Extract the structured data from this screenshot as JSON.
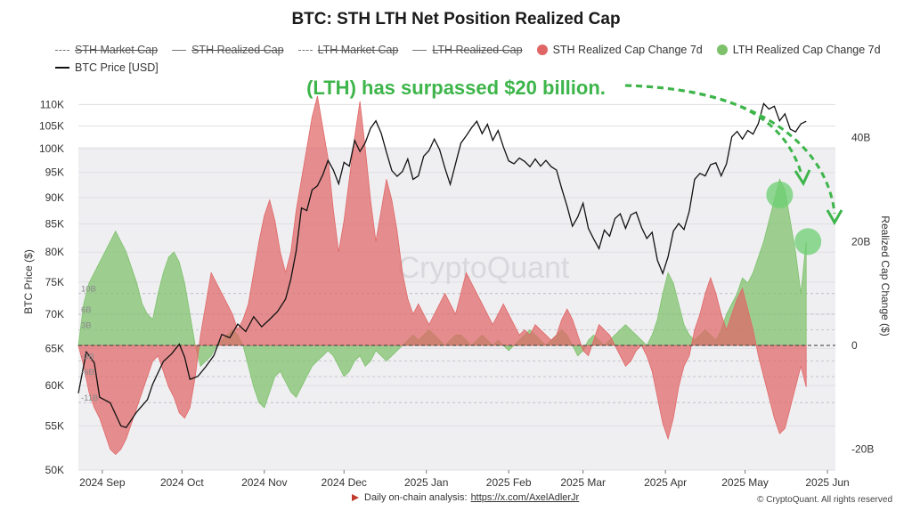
{
  "chart_data": {
    "type": "area",
    "title": "BTC: STH LTH Net Position Realized Cap",
    "legend": [
      {
        "name": "STH Market Cap",
        "style": "dash",
        "struck": true
      },
      {
        "name": "STH Realized Cap",
        "style": "solid-grey",
        "struck": true
      },
      {
        "name": "LTH Market Cap",
        "style": "dash",
        "struck": true
      },
      {
        "name": "LTH Realized Cap",
        "style": "solid-grey",
        "struck": true
      },
      {
        "name": "STH Realized Cap Change 7d",
        "style": "dot",
        "color": "#e06666",
        "struck": false
      },
      {
        "name": "LTH Realized Cap Change 7d",
        "style": "dot",
        "color": "#7dc16a",
        "struck": false
      },
      {
        "name": "BTC Price [USD]",
        "style": "solid-black",
        "struck": false
      }
    ],
    "xlabel": "",
    "ylabel": "BTC Price ($)",
    "y2label": "Realized Cap Change ($)",
    "x_ticks": [
      "2024 Sep",
      "2024 Oct",
      "2024 Nov",
      "2024 Dec",
      "2025 Jan",
      "2025 Feb",
      "2025 Mar",
      "2025 Apr",
      "2025 May",
      "2025 Jun"
    ],
    "y_left_ticks": [
      "110K",
      "105K",
      "100K",
      "95K",
      "90K",
      "85K",
      "80K",
      "75K",
      "70K",
      "65K",
      "60K",
      "55K",
      "50K"
    ],
    "y_left_scale": "log",
    "y_left_range": [
      50000,
      112000
    ],
    "y_right_ticks": [
      "40B",
      "20B",
      "0",
      "-20B"
    ],
    "y_right_range": [
      -24,
      48
    ],
    "inner_ticks": [
      "10B",
      "6B",
      "3B",
      "-3B",
      "-6B",
      "-11B"
    ],
    "x_day_range": [
      0,
      285
    ],
    "btc_price": [
      [
        0,
        59000
      ],
      [
        3,
        64500
      ],
      [
        6,
        63000
      ],
      [
        8,
        58500
      ],
      [
        12,
        57800
      ],
      [
        16,
        55000
      ],
      [
        18,
        54800
      ],
      [
        22,
        56700
      ],
      [
        26,
        58200
      ],
      [
        28,
        60200
      ],
      [
        32,
        63200
      ],
      [
        35,
        64200
      ],
      [
        38,
        65600
      ],
      [
        40,
        63800
      ],
      [
        42,
        60800
      ],
      [
        45,
        61200
      ],
      [
        48,
        62500
      ],
      [
        51,
        64000
      ],
      [
        54,
        67000
      ],
      [
        57,
        66500
      ],
      [
        60,
        68500
      ],
      [
        63,
        67400
      ],
      [
        66,
        69600
      ],
      [
        69,
        68100
      ],
      [
        72,
        69200
      ],
      [
        75,
        70400
      ],
      [
        78,
        72300
      ],
      [
        80,
        75500
      ],
      [
        82,
        80200
      ],
      [
        84,
        88000
      ],
      [
        86,
        87500
      ],
      [
        88,
        91500
      ],
      [
        90,
        92300
      ],
      [
        92,
        94500
      ],
      [
        94,
        97500
      ],
      [
        96,
        95500
      ],
      [
        98,
        92700
      ],
      [
        100,
        97100
      ],
      [
        102,
        96300
      ],
      [
        104,
        101800
      ],
      [
        106,
        99400
      ],
      [
        108,
        101300
      ],
      [
        110,
        104500
      ],
      [
        112,
        106200
      ],
      [
        114,
        103400
      ],
      [
        116,
        99200
      ],
      [
        118,
        95400
      ],
      [
        120,
        94200
      ],
      [
        122,
        95200
      ],
      [
        124,
        97800
      ],
      [
        126,
        93600
      ],
      [
        128,
        94300
      ],
      [
        130,
        98400
      ],
      [
        132,
        99600
      ],
      [
        134,
        102100
      ],
      [
        136,
        99800
      ],
      [
        138,
        95900
      ],
      [
        140,
        92600
      ],
      [
        142,
        96800
      ],
      [
        144,
        101200
      ],
      [
        146,
        102800
      ],
      [
        148,
        104600
      ],
      [
        150,
        106100
      ],
      [
        152,
        103300
      ],
      [
        154,
        105400
      ],
      [
        156,
        101800
      ],
      [
        158,
        104000
      ],
      [
        160,
        100400
      ],
      [
        162,
        97400
      ],
      [
        164,
        96800
      ],
      [
        166,
        98000
      ],
      [
        168,
        97300
      ],
      [
        170,
        96200
      ],
      [
        172,
        97800
      ],
      [
        174,
        96300
      ],
      [
        176,
        97500
      ],
      [
        178,
        96200
      ],
      [
        180,
        95500
      ],
      [
        182,
        91700
      ],
      [
        184,
        88300
      ],
      [
        186,
        84600
      ],
      [
        188,
        86300
      ],
      [
        190,
        88900
      ],
      [
        192,
        84200
      ],
      [
        194,
        82300
      ],
      [
        196,
        80600
      ],
      [
        198,
        83900
      ],
      [
        200,
        82800
      ],
      [
        202,
        86000
      ],
      [
        204,
        86900
      ],
      [
        206,
        84200
      ],
      [
        208,
        86700
      ],
      [
        210,
        87200
      ],
      [
        212,
        84400
      ],
      [
        214,
        82400
      ],
      [
        216,
        83500
      ],
      [
        218,
        78600
      ],
      [
        220,
        76400
      ],
      [
        222,
        79200
      ],
      [
        224,
        83700
      ],
      [
        226,
        85100
      ],
      [
        228,
        84000
      ],
      [
        230,
        87400
      ],
      [
        232,
        93600
      ],
      [
        234,
        94800
      ],
      [
        236,
        94300
      ],
      [
        238,
        96600
      ],
      [
        240,
        97000
      ],
      [
        242,
        94300
      ],
      [
        244,
        96800
      ],
      [
        246,
        102600
      ],
      [
        248,
        103800
      ],
      [
        250,
        102100
      ],
      [
        252,
        104000
      ],
      [
        254,
        103200
      ],
      [
        256,
        105600
      ],
      [
        258,
        110200
      ],
      [
        260,
        108900
      ],
      [
        262,
        109600
      ],
      [
        264,
        106200
      ],
      [
        266,
        107800
      ],
      [
        268,
        104300
      ],
      [
        270,
        103700
      ],
      [
        272,
        105500
      ],
      [
        274,
        106100
      ]
    ],
    "sth_change_7d": [
      [
        0,
        0
      ],
      [
        2,
        -4
      ],
      [
        4,
        -9
      ],
      [
        6,
        -12
      ],
      [
        8,
        -14
      ],
      [
        10,
        -17
      ],
      [
        12,
        -20
      ],
      [
        14,
        -21
      ],
      [
        16,
        -20
      ],
      [
        18,
        -18
      ],
      [
        20,
        -15
      ],
      [
        22,
        -12
      ],
      [
        24,
        -9
      ],
      [
        26,
        -6
      ],
      [
        28,
        -3
      ],
      [
        30,
        -2
      ],
      [
        32,
        -5
      ],
      [
        34,
        -8
      ],
      [
        36,
        -10
      ],
      [
        38,
        -13
      ],
      [
        40,
        -14
      ],
      [
        42,
        -12
      ],
      [
        44,
        -6
      ],
      [
        46,
        2
      ],
      [
        48,
        8
      ],
      [
        50,
        14
      ],
      [
        52,
        12
      ],
      [
        54,
        10
      ],
      [
        56,
        8
      ],
      [
        58,
        6
      ],
      [
        60,
        3
      ],
      [
        62,
        5
      ],
      [
        64,
        8
      ],
      [
        66,
        14
      ],
      [
        68,
        20
      ],
      [
        70,
        25
      ],
      [
        72,
        28
      ],
      [
        74,
        24
      ],
      [
        76,
        18
      ],
      [
        78,
        14
      ],
      [
        80,
        18
      ],
      [
        82,
        26
      ],
      [
        84,
        32
      ],
      [
        86,
        38
      ],
      [
        88,
        44
      ],
      [
        90,
        48
      ],
      [
        92,
        42
      ],
      [
        94,
        36
      ],
      [
        96,
        26
      ],
      [
        98,
        18
      ],
      [
        100,
        24
      ],
      [
        102,
        32
      ],
      [
        104,
        40
      ],
      [
        106,
        47
      ],
      [
        108,
        38
      ],
      [
        110,
        28
      ],
      [
        112,
        20
      ],
      [
        114,
        26
      ],
      [
        116,
        32
      ],
      [
        118,
        28
      ],
      [
        120,
        22
      ],
      [
        122,
        14
      ],
      [
        124,
        9
      ],
      [
        126,
        6
      ],
      [
        128,
        8
      ],
      [
        130,
        6
      ],
      [
        132,
        4
      ],
      [
        134,
        6
      ],
      [
        136,
        8
      ],
      [
        138,
        10
      ],
      [
        140,
        8
      ],
      [
        142,
        6
      ],
      [
        144,
        10
      ],
      [
        146,
        14
      ],
      [
        148,
        12
      ],
      [
        150,
        10
      ],
      [
        152,
        8
      ],
      [
        154,
        6
      ],
      [
        156,
        4
      ],
      [
        158,
        6
      ],
      [
        160,
        8
      ],
      [
        162,
        6
      ],
      [
        164,
        4
      ],
      [
        166,
        2
      ],
      [
        168,
        3
      ],
      [
        170,
        2
      ],
      [
        172,
        4
      ],
      [
        174,
        3
      ],
      [
        176,
        2
      ],
      [
        178,
        1
      ],
      [
        180,
        2
      ],
      [
        182,
        5
      ],
      [
        184,
        7
      ],
      [
        186,
        5
      ],
      [
        188,
        2
      ],
      [
        190,
        -1
      ],
      [
        192,
        -2
      ],
      [
        194,
        1
      ],
      [
        196,
        4
      ],
      [
        198,
        3
      ],
      [
        200,
        2
      ],
      [
        202,
        0
      ],
      [
        204,
        -2
      ],
      [
        206,
        -4
      ],
      [
        208,
        -3
      ],
      [
        210,
        -1
      ],
      [
        212,
        0
      ],
      [
        214,
        -2
      ],
      [
        216,
        -5
      ],
      [
        218,
        -10
      ],
      [
        220,
        -15
      ],
      [
        222,
        -18
      ],
      [
        224,
        -14
      ],
      [
        226,
        -8
      ],
      [
        228,
        -4
      ],
      [
        230,
        -2
      ],
      [
        232,
        3
      ],
      [
        234,
        6
      ],
      [
        236,
        10
      ],
      [
        238,
        13
      ],
      [
        240,
        10
      ],
      [
        242,
        6
      ],
      [
        244,
        3
      ],
      [
        246,
        6
      ],
      [
        248,
        9
      ],
      [
        250,
        11
      ],
      [
        252,
        7
      ],
      [
        254,
        3
      ],
      [
        256,
        -2
      ],
      [
        258,
        -6
      ],
      [
        260,
        -10
      ],
      [
        262,
        -14
      ],
      [
        264,
        -17
      ],
      [
        266,
        -16
      ],
      [
        268,
        -12
      ],
      [
        270,
        -8
      ],
      [
        272,
        -4
      ],
      [
        274,
        -8
      ]
    ],
    "lth_change_7d": [
      [
        0,
        0
      ],
      [
        2,
        8
      ],
      [
        4,
        12
      ],
      [
        6,
        14
      ],
      [
        8,
        16
      ],
      [
        10,
        18
      ],
      [
        12,
        20
      ],
      [
        14,
        22
      ],
      [
        16,
        20
      ],
      [
        18,
        18
      ],
      [
        20,
        15
      ],
      [
        22,
        12
      ],
      [
        24,
        8
      ],
      [
        26,
        6
      ],
      [
        28,
        5
      ],
      [
        30,
        10
      ],
      [
        32,
        14
      ],
      [
        34,
        17
      ],
      [
        36,
        18
      ],
      [
        38,
        16
      ],
      [
        40,
        12
      ],
      [
        42,
        6
      ],
      [
        44,
        0
      ],
      [
        46,
        -4
      ],
      [
        48,
        -3
      ],
      [
        50,
        -2
      ],
      [
        52,
        0
      ],
      [
        54,
        1
      ],
      [
        56,
        2
      ],
      [
        58,
        3
      ],
      [
        60,
        2
      ],
      [
        62,
        0
      ],
      [
        64,
        -4
      ],
      [
        66,
        -8
      ],
      [
        68,
        -11
      ],
      [
        70,
        -12
      ],
      [
        72,
        -9
      ],
      [
        74,
        -6
      ],
      [
        76,
        -5
      ],
      [
        78,
        -7
      ],
      [
        80,
        -9
      ],
      [
        82,
        -10
      ],
      [
        84,
        -8
      ],
      [
        86,
        -6
      ],
      [
        88,
        -4
      ],
      [
        90,
        -3
      ],
      [
        92,
        -2
      ],
      [
        94,
        -1
      ],
      [
        96,
        -2
      ],
      [
        98,
        -4
      ],
      [
        100,
        -6
      ],
      [
        102,
        -5
      ],
      [
        104,
        -3
      ],
      [
        106,
        -2
      ],
      [
        108,
        -4
      ],
      [
        110,
        -3
      ],
      [
        112,
        -1
      ],
      [
        114,
        -2
      ],
      [
        116,
        -3
      ],
      [
        118,
        -2
      ],
      [
        120,
        -1
      ],
      [
        122,
        0
      ],
      [
        124,
        1
      ],
      [
        126,
        2
      ],
      [
        128,
        1
      ],
      [
        130,
        2
      ],
      [
        132,
        3
      ],
      [
        134,
        2
      ],
      [
        136,
        1
      ],
      [
        138,
        0
      ],
      [
        140,
        1
      ],
      [
        142,
        2
      ],
      [
        144,
        2
      ],
      [
        146,
        1
      ],
      [
        148,
        0
      ],
      [
        150,
        1
      ],
      [
        152,
        2
      ],
      [
        154,
        1
      ],
      [
        156,
        0
      ],
      [
        158,
        1
      ],
      [
        160,
        0
      ],
      [
        162,
        -1
      ],
      [
        164,
        0
      ],
      [
        166,
        1
      ],
      [
        168,
        2
      ],
      [
        170,
        3
      ],
      [
        172,
        2
      ],
      [
        174,
        1
      ],
      [
        176,
        0
      ],
      [
        178,
        1
      ],
      [
        180,
        2
      ],
      [
        182,
        3
      ],
      [
        184,
        2
      ],
      [
        186,
        0
      ],
      [
        188,
        -2
      ],
      [
        190,
        -1
      ],
      [
        192,
        1
      ],
      [
        194,
        2
      ],
      [
        196,
        1
      ],
      [
        198,
        0
      ],
      [
        200,
        1
      ],
      [
        202,
        2
      ],
      [
        204,
        3
      ],
      [
        206,
        4
      ],
      [
        208,
        3
      ],
      [
        210,
        2
      ],
      [
        212,
        1
      ],
      [
        214,
        0
      ],
      [
        216,
        2
      ],
      [
        218,
        5
      ],
      [
        220,
        10
      ],
      [
        222,
        14
      ],
      [
        224,
        12
      ],
      [
        226,
        8
      ],
      [
        228,
        4
      ],
      [
        230,
        2
      ],
      [
        232,
        1
      ],
      [
        234,
        2
      ],
      [
        236,
        3
      ],
      [
        238,
        2
      ],
      [
        240,
        1
      ],
      [
        242,
        3
      ],
      [
        244,
        6
      ],
      [
        246,
        8
      ],
      [
        248,
        10
      ],
      [
        250,
        13
      ],
      [
        252,
        12
      ],
      [
        254,
        14
      ],
      [
        256,
        17
      ],
      [
        258,
        20
      ],
      [
        260,
        24
      ],
      [
        262,
        28
      ],
      [
        264,
        32
      ],
      [
        266,
        30
      ],
      [
        268,
        24
      ],
      [
        270,
        18
      ],
      [
        272,
        10
      ],
      [
        274,
        20
      ]
    ],
    "annotations": [
      {
        "text": "(LTH) has surpassed $20 billion.",
        "color": "#3db54a"
      }
    ],
    "colors": {
      "sth": "#e06666",
      "lth": "#7dc16a",
      "price": "#111111",
      "annotation": "#3db54a"
    },
    "watermark": "CryptoQuant",
    "grid": true,
    "legend_position": "top"
  },
  "footer": {
    "text": "Daily on-chain analysis:",
    "link": "https://x.com/AxelAdlerJr",
    "copyright": "© CryptoQuant. All rights reserved"
  }
}
